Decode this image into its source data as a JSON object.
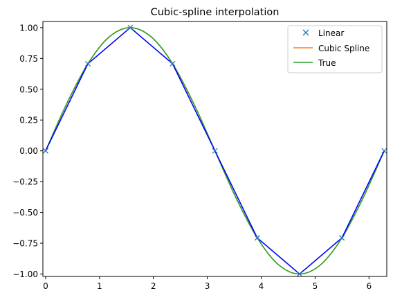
{
  "chart_data": {
    "type": "line",
    "title": "Cubic-spline interpolation",
    "xlabel": "",
    "ylabel": "",
    "xlim": [
      -0.05,
      6.33
    ],
    "ylim": [
      -1.02,
      1.05
    ],
    "xticks": [
      0,
      1,
      2,
      3,
      4,
      5,
      6
    ],
    "xtick_labels": [
      "0",
      "1",
      "2",
      "3",
      "4",
      "5",
      "6"
    ],
    "yticks": [
      -1.0,
      -0.75,
      -0.5,
      -0.25,
      0.0,
      0.25,
      0.5,
      0.75,
      1.0
    ],
    "ytick_labels": [
      "−1.00",
      "−0.75",
      "−0.50",
      "−0.25",
      "0.00",
      "0.25",
      "0.50",
      "0.75",
      "1.00"
    ],
    "grid": false,
    "legend": "top-right",
    "series": [
      {
        "name": "Linear",
        "color": "#1f77b4",
        "marker": "x",
        "x": [
          0,
          0.785,
          1.571,
          2.356,
          3.142,
          3.927,
          4.712,
          5.498,
          6.283
        ],
        "y": [
          0,
          0.707,
          1.0,
          0.707,
          0,
          -0.707,
          -1.0,
          -0.707,
          0
        ]
      },
      {
        "name": "Cubic Spline",
        "color": "#ff7f0e",
        "x": [
          0,
          0.393,
          0.785,
          1.178,
          1.571,
          1.963,
          2.356,
          2.749,
          3.142,
          3.534,
          3.927,
          4.32,
          4.712,
          5.105,
          5.498,
          5.89,
          6.283
        ],
        "y": [
          0,
          0.383,
          0.707,
          0.924,
          1.0,
          0.924,
          0.707,
          0.383,
          0,
          -0.383,
          -0.707,
          -0.924,
          -1.0,
          -0.924,
          -0.707,
          -0.383,
          0
        ]
      },
      {
        "name": "True",
        "color": "#2ca02c",
        "x": [
          0,
          0.393,
          0.785,
          1.178,
          1.571,
          1.963,
          2.356,
          2.749,
          3.142,
          3.534,
          3.927,
          4.32,
          4.712,
          5.105,
          5.498,
          5.89,
          6.283
        ],
        "y": [
          0,
          0.383,
          0.707,
          0.924,
          1.0,
          0.924,
          0.707,
          0.383,
          0,
          -0.383,
          -0.707,
          -0.924,
          -1.0,
          -0.924,
          -0.707,
          -0.383,
          0
        ]
      },
      {
        "color": "#0000ff",
        "x": [
          0,
          0.785,
          1.571,
          2.356,
          3.142,
          3.927,
          4.712,
          5.498,
          6.283
        ],
        "y": [
          0,
          0.707,
          1.0,
          0.707,
          0,
          -0.707,
          -1.0,
          -0.707,
          0
        ]
      }
    ]
  }
}
